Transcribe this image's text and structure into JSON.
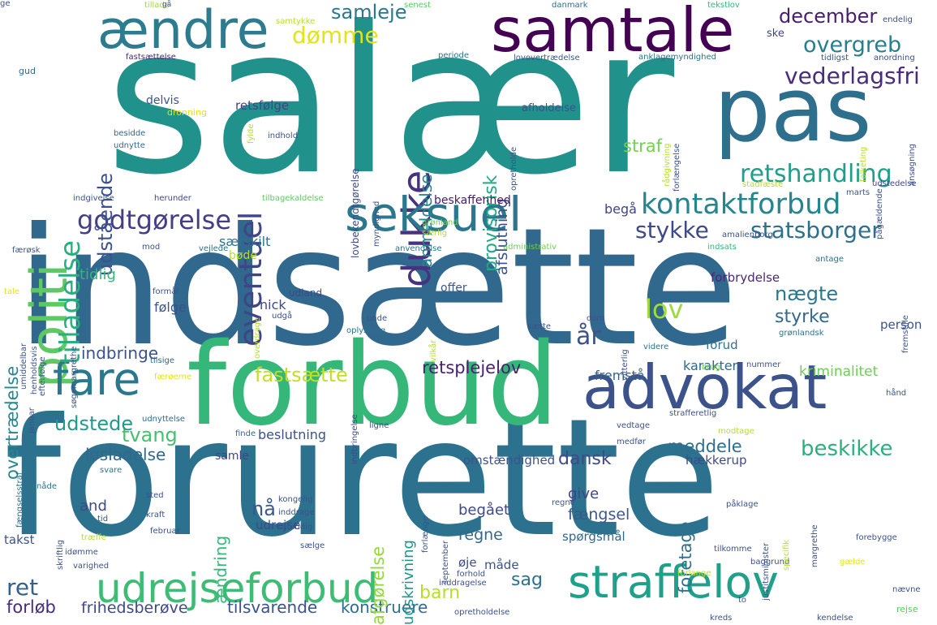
{
  "palette": {
    "background": "#ffffff",
    "dark_purple": "#440154",
    "purple": "#482878",
    "indigo": "#3e4989",
    "blue": "#31688e",
    "teal_blue": "#26828e",
    "teal": "#1f9e89",
    "green": "#35b779",
    "light_green": "#6ece58",
    "lime": "#b5de2b",
    "yellow": "#e3e418"
  },
  "words": [
    {
      "text": "salær",
      "color": "#21918c"
    },
    {
      "text": "indsætte",
      "color": "#31688e"
    },
    {
      "text": "forurette",
      "color": "#2c728e"
    },
    {
      "text": "forbud",
      "color": "#35b779"
    },
    {
      "text": "advokat",
      "color": "#3b528b"
    },
    {
      "text": "pas",
      "color": "#2e6f8e"
    },
    {
      "text": "samtale",
      "color": "#440154"
    },
    {
      "text": "ændre",
      "color": "#2c7b8e"
    },
    {
      "text": "politi",
      "color": "#5ec962"
    },
    {
      "text": "dukke",
      "color": "#46327e"
    },
    {
      "text": "seksuel",
      "color": "#2a788e"
    },
    {
      "text": "godtgørelse",
      "color": "#433e85"
    },
    {
      "text": "kontaktforbud",
      "color": "#25858e"
    },
    {
      "text": "udrejseforbud",
      "color": "#3dbc74"
    },
    {
      "text": "straffelov",
      "color": "#1fa088"
    },
    {
      "text": "fare",
      "color": "#2a788e"
    },
    {
      "text": "tilladelse",
      "color": "#29af7f"
    },
    {
      "text": "eventuel",
      "color": "#414487"
    },
    {
      "text": "retshandling",
      "color": "#1f9e89"
    },
    {
      "text": "statsborger",
      "color": "#2d708e"
    },
    {
      "text": "stykke",
      "color": "#3e4989"
    },
    {
      "text": "lov",
      "color": "#a0da39"
    },
    {
      "text": "vederlagsfri",
      "color": "#472d7b"
    },
    {
      "text": "overgreb",
      "color": "#277f8e"
    },
    {
      "text": "december",
      "color": "#481d6f"
    },
    {
      "text": "dømme",
      "color": "#e3e418"
    },
    {
      "text": "samleje",
      "color": "#2a788e"
    },
    {
      "text": "udstående",
      "color": "#3b528b"
    },
    {
      "text": "anmeldelse",
      "color": "#25858e"
    },
    {
      "text": "provisorisk",
      "color": "#22a884"
    },
    {
      "text": "afslutning",
      "color": "#3b528b"
    },
    {
      "text": "straf",
      "color": "#75d054"
    },
    {
      "text": "beskikke",
      "color": "#2ab07f"
    },
    {
      "text": "fastsætte",
      "color": "#c2df23"
    },
    {
      "text": "tvang",
      "color": "#46c06f"
    },
    {
      "text": "udstede",
      "color": "#1e9b8a"
    },
    {
      "text": "overtrædelse",
      "color": "#23898e"
    },
    {
      "text": "indbringe",
      "color": "#3b528b"
    },
    {
      "text": "tidlig",
      "color": "#35b779"
    },
    {
      "text": "retsplejelov",
      "color": "#482173"
    },
    {
      "text": "løsladelse",
      "color": "#31688e"
    },
    {
      "text": "meddele",
      "color": "#2e6e8e"
    },
    {
      "text": "nægte",
      "color": "#2a788e"
    },
    {
      "text": "styrke",
      "color": "#31688e"
    },
    {
      "text": "år",
      "color": "#3b528b"
    },
    {
      "text": "sag",
      "color": "#2d708e"
    },
    {
      "text": "barn",
      "color": "#b5de2b"
    },
    {
      "text": "ret",
      "color": "#33638d"
    },
    {
      "text": "forløb",
      "color": "#472c7a"
    },
    {
      "text": "frihedsberøve",
      "color": "#3e4989"
    },
    {
      "text": "tilsvarende",
      "color": "#3b528b"
    },
    {
      "text": "konstruere",
      "color": "#2e6e8e"
    },
    {
      "text": "and",
      "color": "#3e4989"
    },
    {
      "text": "nå",
      "color": "#38598c"
    },
    {
      "text": "ændring",
      "color": "#35b779"
    },
    {
      "text": "afgørelse",
      "color": "#93d741"
    },
    {
      "text": "udskrivning",
      "color": "#20928c"
    },
    {
      "text": "begået",
      "color": "#3e4989"
    },
    {
      "text": "regne",
      "color": "#31688e"
    },
    {
      "text": "fængsel",
      "color": "#38598c"
    },
    {
      "text": "foretage",
      "color": "#2d708e"
    },
    {
      "text": "give",
      "color": "#414487"
    },
    {
      "text": "dansk",
      "color": "#3e4989"
    },
    {
      "text": "kriminalitet",
      "color": "#6ece58"
    },
    {
      "text": "karakter",
      "color": "#31688e"
    },
    {
      "text": "fremstå",
      "color": "#33638d"
    },
    {
      "text": "forud",
      "color": "#2c728e"
    },
    {
      "text": "person",
      "color": "#3b528b"
    },
    {
      "text": "offer",
      "color": "#38598c"
    },
    {
      "text": "følge",
      "color": "#3b528b"
    },
    {
      "text": "nick",
      "color": "#3e4989"
    },
    {
      "text": "forbrydelse",
      "color": "#482878"
    },
    {
      "text": "særskilt",
      "color": "#2c728e"
    },
    {
      "text": "begå",
      "color": "#414487"
    },
    {
      "text": "beskaffenhed",
      "color": "#481b6d"
    },
    {
      "text": "retsfølge",
      "color": "#414487"
    },
    {
      "text": "delvis",
      "color": "#3b528b"
    },
    {
      "text": "afholdelse",
      "color": "#3b528b"
    },
    {
      "text": "bøde",
      "color": "#b5de2b"
    },
    {
      "text": "udland",
      "color": "#3e4989"
    },
    {
      "text": "beslutning",
      "color": "#3b528b"
    },
    {
      "text": "omstændighed",
      "color": "#3b528b"
    },
    {
      "text": "hækkerup",
      "color": "#3e4989"
    },
    {
      "text": "samle",
      "color": "#404688"
    },
    {
      "text": "spørgsmål",
      "color": "#31688e"
    },
    {
      "text": "udrejse",
      "color": "#3e4989"
    },
    {
      "text": "måde",
      "color": "#3b528b"
    },
    {
      "text": "øje",
      "color": "#3e4989"
    },
    {
      "text": "takst",
      "color": "#3b528b"
    },
    {
      "text": "tillade",
      "color": "#a0da39"
    },
    {
      "text": "senest",
      "color": "#5ec962"
    },
    {
      "text": "danmark",
      "color": "#2d708e"
    },
    {
      "text": "tekstlov",
      "color": "#35b779"
    },
    {
      "text": "endelig",
      "color": "#3b528b"
    },
    {
      "text": "fastsættelse",
      "color": "#482878"
    },
    {
      "text": "periode",
      "color": "#2d708e"
    },
    {
      "text": "lovovertrædelse",
      "color": "#38598c"
    },
    {
      "text": "anklagemyndighed",
      "color": "#2c728e"
    },
    {
      "text": "tidligst",
      "color": "#3b528b"
    },
    {
      "text": "anordning",
      "color": "#3b528b"
    },
    {
      "text": "gud",
      "color": "#31688e"
    },
    {
      "text": "samtykke",
      "color": "#b5de2b"
    },
    {
      "text": "ske",
      "color": "#414487"
    },
    {
      "text": "dronning",
      "color": "#e3e418"
    },
    {
      "text": "besidde",
      "color": "#31688e"
    },
    {
      "text": "udnytte",
      "color": "#31688e"
    },
    {
      "text": "indhold",
      "color": "#3b528b"
    },
    {
      "text": "indgivelse",
      "color": "#3b528b"
    },
    {
      "text": "herunder",
      "color": "#404688"
    },
    {
      "text": "tilbagekaldelse",
      "color": "#5ec962"
    },
    {
      "text": "lovbekendtgørelse",
      "color": "#3e4989"
    },
    {
      "text": "færøsk",
      "color": "#3b528b"
    },
    {
      "text": "mod",
      "color": "#3b528b"
    },
    {
      "text": "vejlede",
      "color": "#2c728e"
    },
    {
      "text": "anvendelse",
      "color": "#2c728e"
    },
    {
      "text": "administrativ",
      "color": "#6ece58"
    },
    {
      "text": "indsats",
      "color": "#35b779"
    },
    {
      "text": "amalienborg",
      "color": "#3b528b"
    },
    {
      "text": "antage",
      "color": "#2c728e"
    },
    {
      "text": "grønland",
      "color": "#6ece58"
    },
    {
      "text": "særlig",
      "color": "#b5de2b"
    },
    {
      "text": "stadfæste",
      "color": "#b5de2b"
    },
    {
      "text": "marts",
      "color": "#3b528b"
    },
    {
      "text": "udstedelse",
      "color": "#3e4989"
    },
    {
      "text": "formål",
      "color": "#3b528b"
    },
    {
      "text": "unde",
      "color": "#3b528b"
    },
    {
      "text": "oplysning",
      "color": "#2c728e"
    },
    {
      "text": "sætte",
      "color": "#3b528b"
    },
    {
      "text": "videre",
      "color": "#2c728e"
    },
    {
      "text": "grønlandsk",
      "color": "#2c728e"
    },
    {
      "text": "brug",
      "color": "#6ece58"
    },
    {
      "text": "dom",
      "color": "#3b528b"
    },
    {
      "text": "udgå",
      "color": "#3b528b"
    },
    {
      "text": "overdrage",
      "color": "#b5de2b"
    },
    {
      "text": "tilsige",
      "color": "#31688e"
    },
    {
      "text": "færøerne",
      "color": "#e3e418"
    },
    {
      "text": "nummer",
      "color": "#3b528b"
    },
    {
      "text": "hånd",
      "color": "#3b528b"
    },
    {
      "text": "fængselsstraf",
      "color": "#2d708e"
    },
    {
      "text": "januar",
      "color": "#3b528b"
    },
    {
      "text": "udnyttelse",
      "color": "#31688e"
    },
    {
      "text": "finde",
      "color": "#31688e"
    },
    {
      "text": "ligne",
      "color": "#3b528b"
    },
    {
      "text": "modtage",
      "color": "#b5de2b"
    },
    {
      "text": "strafferetlig",
      "color": "#3b528b"
    },
    {
      "text": "vedtage",
      "color": "#3b528b"
    },
    {
      "text": "medfør",
      "color": "#3b528b"
    },
    {
      "text": "nåde",
      "color": "#2c728e"
    },
    {
      "text": "svare",
      "color": "#2c728e"
    },
    {
      "text": "sted",
      "color": "#3b528b"
    },
    {
      "text": "kraft",
      "color": "#3b528b"
    },
    {
      "text": "tid",
      "color": "#3b528b"
    },
    {
      "text": "februar",
      "color": "#3b528b"
    },
    {
      "text": "træffe",
      "color": "#b5de2b"
    },
    {
      "text": "idømme",
      "color": "#3b528b"
    },
    {
      "text": "varighed",
      "color": "#3b528b"
    },
    {
      "text": "kongelig",
      "color": "#3b528b"
    },
    {
      "text": "inddrage",
      "color": "#3b528b"
    },
    {
      "text": "samtidig",
      "color": "#3b528b"
    },
    {
      "text": "sælge",
      "color": "#3b528b"
    },
    {
      "text": "tilkomme",
      "color": "#3b528b"
    },
    {
      "text": "baggrund",
      "color": "#3b528b"
    },
    {
      "text": "forlange",
      "color": "#b5de2b"
    },
    {
      "text": "forhold",
      "color": "#3b528b"
    },
    {
      "text": "opretholdelse",
      "color": "#3b528b"
    },
    {
      "text": "kreds",
      "color": "#3b528b"
    },
    {
      "text": "kendelse",
      "color": "#3b528b"
    },
    {
      "text": "to",
      "color": "#3b528b"
    },
    {
      "text": "rejse",
      "color": "#5ec962"
    },
    {
      "text": "nævne",
      "color": "#3b528b"
    },
    {
      "text": "forebygge",
      "color": "#3b528b"
    },
    {
      "text": "gælde",
      "color": "#e3e418"
    },
    {
      "text": "påklage",
      "color": "#3b528b"
    },
    {
      "text": "regne",
      "color": "#3b528b"
    },
    {
      "text": "gå",
      "color": "#3b528b"
    },
    {
      "text": "fylde",
      "color": "#b5de2b"
    },
    {
      "text": "opretholde",
      "color": "#3b528b"
    },
    {
      "text": "rådgivning",
      "color": "#b5de2b"
    },
    {
      "text": "forlængelse",
      "color": "#3b528b"
    },
    {
      "text": "folketing",
      "color": "#b5de2b"
    },
    {
      "text": "ansøgning",
      "color": "#3b528b"
    },
    {
      "text": "pågældende",
      "color": "#3b528b"
    },
    {
      "text": "myndighed",
      "color": "#3b528b"
    },
    {
      "text": "tale",
      "color": "#e3e418"
    },
    {
      "text": "umiddelbar",
      "color": "#3b528b"
    },
    {
      "text": "henholdsvis",
      "color": "#3b528b"
    },
    {
      "text": "efterfølge",
      "color": "#3b528b"
    },
    {
      "text": "søgemargrethe",
      "color": "#3b528b"
    },
    {
      "text": "fremstille",
      "color": "#3b528b"
    },
    {
      "text": "vitterlig",
      "color": "#3b528b"
    },
    {
      "text": "vilkår",
      "color": "#b5de2b"
    },
    {
      "text": "indbringelse",
      "color": "#3e4989"
    },
    {
      "text": "forlænge",
      "color": "#3b528b"
    },
    {
      "text": "september",
      "color": "#3b528b"
    },
    {
      "text": "justitsminister",
      "color": "#3b528b"
    },
    {
      "text": "margrethe",
      "color": "#3b528b"
    },
    {
      "text": "specifik",
      "color": "#b5de2b"
    },
    {
      "text": "skriftlig",
      "color": "#3b528b"
    },
    {
      "text": "inddragelse",
      "color": "#3b528b"
    },
    {
      "text": "ge",
      "color": "#3b528b"
    }
  ]
}
